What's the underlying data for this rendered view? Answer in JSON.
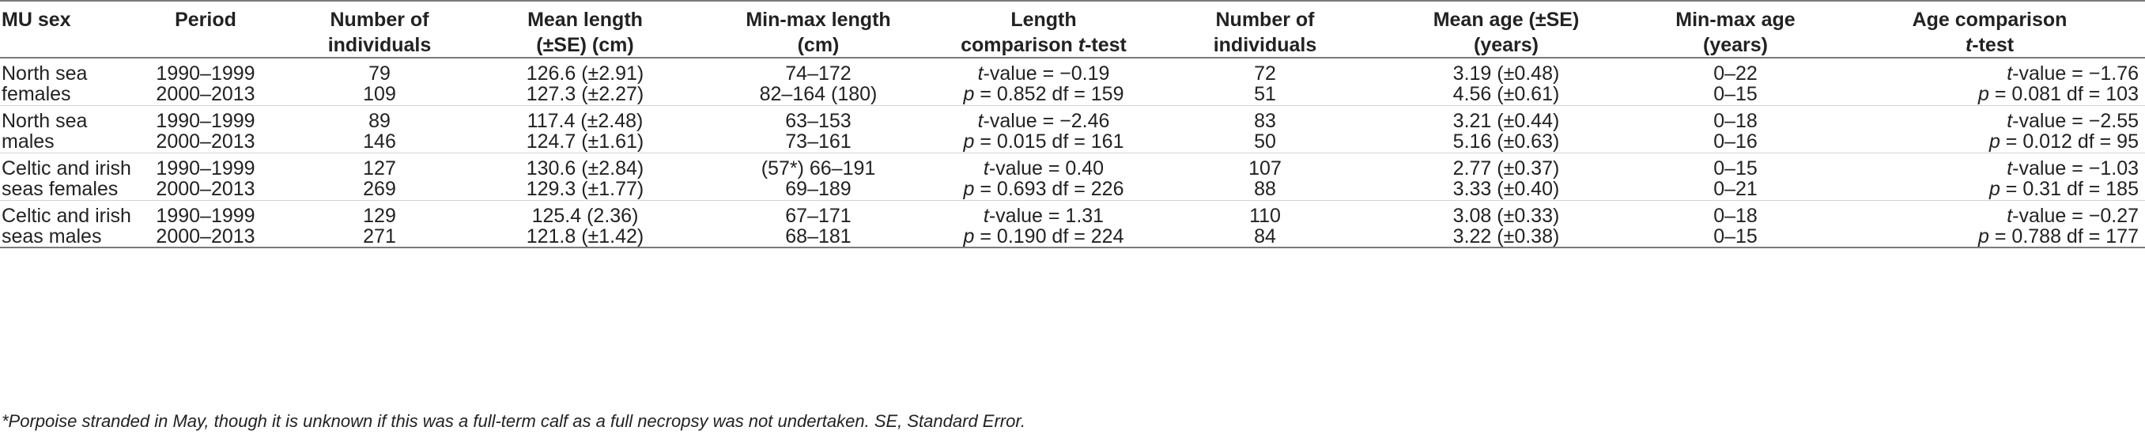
{
  "headers": [
    [
      "MU sex",
      ""
    ],
    [
      "Period",
      ""
    ],
    [
      "Number of",
      "individuals"
    ],
    [
      "Mean length",
      "(±SE) (cm)"
    ],
    [
      "Min-max length",
      "(cm)"
    ],
    [
      "Length",
      "comparison t-test"
    ],
    [
      "Number of",
      "individuals"
    ],
    [
      "Mean age (±SE)",
      "(years)"
    ],
    [
      "Min-max age",
      "(years)"
    ],
    [
      "Age comparison",
      "t-test"
    ]
  ],
  "groups": [
    {
      "label": [
        "North sea",
        "females"
      ],
      "period": [
        "1990–1999",
        "2000–2013"
      ],
      "n_len": [
        "79",
        "109"
      ],
      "mean_len": [
        "126.6 (±2.91)",
        "127.3 (±2.27)"
      ],
      "minmax_len": [
        "74–172",
        "82–164 (180)"
      ],
      "len_t": [
        "t-value = −0.19",
        "p = 0.852 df = 159"
      ],
      "n_age": [
        "72",
        "51"
      ],
      "mean_age": [
        "3.19 (±0.48)",
        "4.56 (±0.61)"
      ],
      "minmax_age": [
        "0–22",
        "0–15"
      ],
      "age_t": [
        "t-value = −1.76",
        "p = 0.081 df = 103"
      ]
    },
    {
      "label": [
        "North sea",
        "males"
      ],
      "period": [
        "1990–1999",
        "2000–2013"
      ],
      "n_len": [
        "89",
        "146"
      ],
      "mean_len": [
        "117.4 (±2.48)",
        "124.7 (±1.61)"
      ],
      "minmax_len": [
        "63–153",
        "73–161"
      ],
      "len_t": [
        "t-value = −2.46",
        "p = 0.015 df = 161"
      ],
      "n_age": [
        "83",
        "50"
      ],
      "mean_age": [
        "3.21 (±0.44)",
        "5.16 (±0.63)"
      ],
      "minmax_age": [
        "0–18",
        "0–16"
      ],
      "age_t": [
        "t-value = −2.55",
        "p = 0.012 df = 95"
      ]
    },
    {
      "label": [
        "Celtic and irish",
        "seas females"
      ],
      "period": [
        "1990–1999",
        "2000–2013"
      ],
      "n_len": [
        "127",
        "269"
      ],
      "mean_len": [
        "130.6 (±2.84)",
        "129.3 (±1.77)"
      ],
      "minmax_len": [
        "(57*) 66–191",
        "69–189"
      ],
      "len_t": [
        "t-value = 0.40",
        "p = 0.693 df = 226"
      ],
      "n_age": [
        "107",
        "88"
      ],
      "mean_age": [
        "2.77 (±0.37)",
        "3.33 (±0.40)"
      ],
      "minmax_age": [
        "0–15",
        "0–21"
      ],
      "age_t": [
        "t-value = −1.03",
        "p = 0.31 df = 185"
      ]
    },
    {
      "label": [
        "Celtic and irish",
        "seas males"
      ],
      "period": [
        "1990–1999",
        "2000–2013"
      ],
      "n_len": [
        "129",
        "271"
      ],
      "mean_len": [
        "125.4 (2.36)",
        "121.8 (±1.42)"
      ],
      "minmax_len": [
        "67–171",
        "68–181"
      ],
      "len_t": [
        "t-value = 1.31",
        "p = 0.190 df = 224"
      ],
      "n_age": [
        "110",
        "84"
      ],
      "mean_age": [
        "3.08 (±0.33)",
        "3.22 (±0.38)"
      ],
      "minmax_age": [
        "0–18",
        "0–15"
      ],
      "age_t": [
        "t-value = −0.27",
        "p = 0.788 df = 177"
      ]
    }
  ],
  "footnote": "*Porpoise stranded in May, though it is unknown if this was a full-term calf as a full necropsy was not undertaken. SE, Standard Error."
}
